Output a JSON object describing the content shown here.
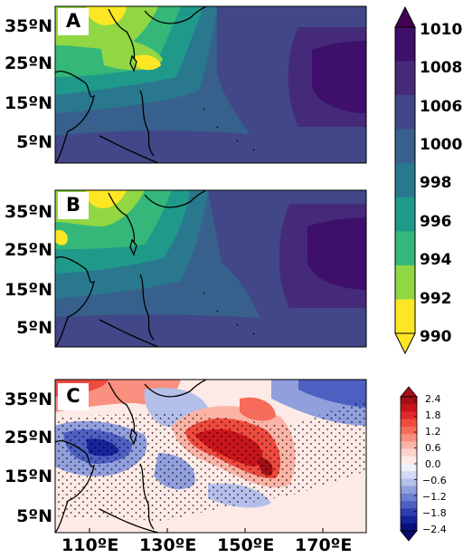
{
  "panels": [
    {
      "letter": "A",
      "lat_labels": [
        "35ºN",
        "25ºN",
        "15ºN",
        "5ºN"
      ]
    },
    {
      "letter": "B",
      "lat_labels": [
        "35ºN",
        "25ºN",
        "15ºN",
        "5ºN"
      ]
    },
    {
      "letter": "C",
      "lat_labels": [
        "35ºN",
        "25ºN",
        "15ºN",
        "5ºN"
      ]
    }
  ],
  "lon_labels": [
    "110ºE",
    "130ºE",
    "150ºE",
    "170ºE"
  ],
  "colorbar_pressure": {
    "labels": [
      "1010",
      "1008",
      "1006",
      "1000",
      "998",
      "996",
      "994",
      "992",
      "990"
    ],
    "colors": [
      "#3e0f6b",
      "#452a7a",
      "#414787",
      "#37618c",
      "#2a788e",
      "#1f9a8a",
      "#35b779",
      "#90d743",
      "#fde725"
    ],
    "top_arrow_color": "#440154",
    "bottom_arrow_color": "#fde725"
  },
  "colorbar_anomaly": {
    "labels": [
      "2.4",
      "1.8",
      "1.2",
      "0.6",
      "0.0",
      "−0.6",
      "−1.2",
      "−1.8",
      "−2.4"
    ],
    "colors": [
      "#a50f15",
      "#c8151b",
      "#e0292a",
      "#ef4a3e",
      "#f66b5a",
      "#f98f7e",
      "#fbb3a6",
      "#fcd2ca",
      "#fdeae6",
      "#eef0fa",
      "#d3d9f2",
      "#b4bfea",
      "#919fdd",
      "#6f80d0",
      "#4d5fc1",
      "#2d3eb0",
      "#18229a",
      "#0b1080"
    ],
    "top_arrow_color": "#a50f15",
    "bottom_arrow_color": "#08086e"
  }
}
